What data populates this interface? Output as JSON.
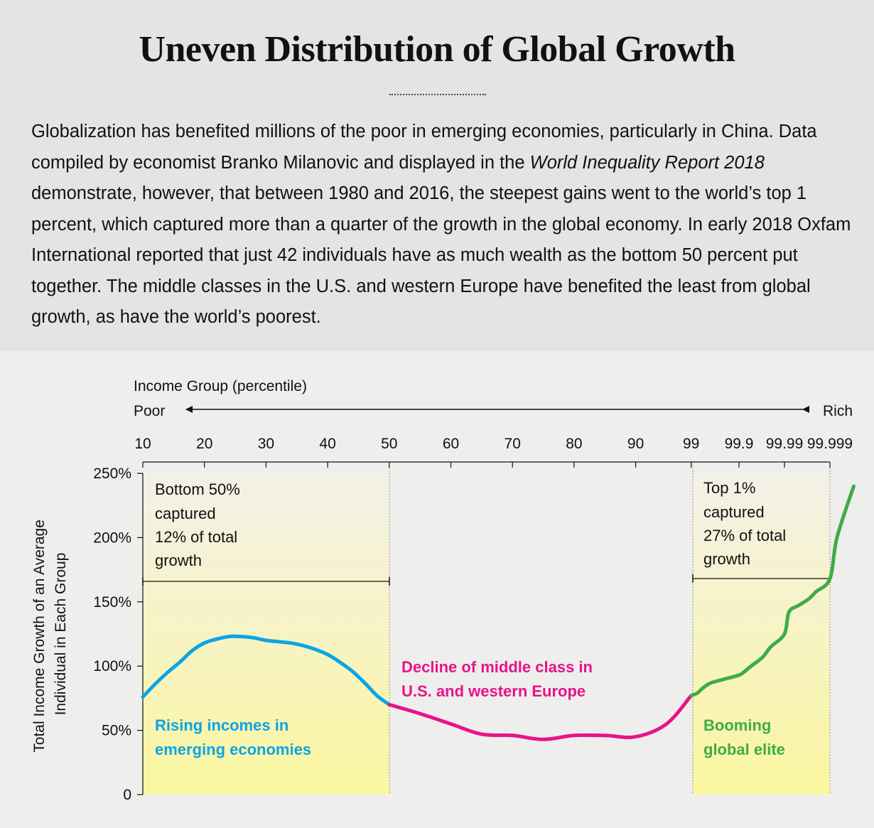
{
  "title": "Uneven Distribution of Global Growth",
  "intro": {
    "part1": "Globalization has benefited millions of the poor in emerging economies, particularly in China. Data compiled by economist Branko Milanovic and displayed in the ",
    "italic": "World Inequality Report 2018",
    "part2": " demonstrate, however, that between 1980 and 2016, the steepest gains went to the world’s top 1 percent, which captured more than a quarter of the growth in the global economy. In early 2018 Oxfam International reported that just 42 individuals have as much wealth as the bottom 50 percent put together. The middle classes in the U.S. and western Europe have benefited the least from global growth, as have the world’s poorest."
  },
  "colors": {
    "rising": "#0aa5e6",
    "decline": "#e8138a",
    "booming": "#3eac48",
    "shade_top": "#f3f1e8",
    "shade_bottom": "#fbf6a0"
  },
  "chart_data": {
    "type": "line",
    "x_axis_title": "Income Group (percentile)",
    "poor_label": "Poor",
    "rich_label": "Rich",
    "ylabel": [
      "Total Income Growth of an Average",
      "Individual in Each Group"
    ],
    "x_ticks": [
      "10",
      "20",
      "30",
      "40",
      "50",
      "60",
      "70",
      "80",
      "90",
      "99",
      "99.9",
      "99.99",
      "99.999"
    ],
    "y_ticks": [
      "0",
      "50%",
      "100%",
      "150%",
      "200%",
      "250%"
    ],
    "ylim": [
      0,
      250
    ],
    "series": [
      {
        "key": "rising",
        "name": "Rising incomes in emerging economies",
        "points": [
          [
            10,
            76
          ],
          [
            12,
            86
          ],
          [
            14,
            95
          ],
          [
            16,
            103
          ],
          [
            18,
            112
          ],
          [
            20,
            118
          ],
          [
            22,
            121
          ],
          [
            24,
            123
          ],
          [
            26,
            123
          ],
          [
            28,
            122
          ],
          [
            30,
            120
          ],
          [
            32,
            119
          ],
          [
            34,
            118
          ],
          [
            36,
            116
          ],
          [
            38,
            113
          ],
          [
            40,
            109
          ],
          [
            42,
            103
          ],
          [
            44,
            96
          ],
          [
            46,
            87
          ],
          [
            48,
            77
          ],
          [
            50,
            70
          ]
        ]
      },
      {
        "key": "decline",
        "name": "Decline of middle class in U.S. and western Europe",
        "points": [
          [
            50,
            70
          ],
          [
            55,
            63
          ],
          [
            60,
            55
          ],
          [
            65,
            47
          ],
          [
            70,
            46
          ],
          [
            75,
            43
          ],
          [
            80,
            46
          ],
          [
            85,
            46
          ],
          [
            90,
            45
          ],
          [
            95,
            55
          ],
          [
            99,
            77
          ]
        ]
      },
      {
        "key": "booming",
        "name": "Booming global elite",
        "points": [
          [
            99,
            77
          ],
          [
            99.2,
            79
          ],
          [
            99.4,
            83
          ],
          [
            99.6,
            87
          ],
          [
            99.8,
            90
          ],
          [
            99.9,
            93
          ],
          [
            99.92,
            95
          ],
          [
            99.95,
            101
          ],
          [
            99.97,
            107
          ],
          [
            99.98,
            115
          ],
          [
            99.99,
            125
          ],
          [
            99.992,
            142
          ],
          [
            99.995,
            147
          ],
          [
            99.997,
            152
          ],
          [
            99.998,
            158
          ],
          [
            99.999,
            168
          ],
          [
            99.9993,
            200
          ],
          [
            99.9997,
            240
          ]
        ]
      }
    ],
    "annotations": {
      "bottom": [
        "Bottom 50%",
        "captured",
        "12% of total",
        "growth"
      ],
      "top": [
        "Top 1%",
        "captured",
        "27% of total",
        "growth"
      ]
    }
  }
}
